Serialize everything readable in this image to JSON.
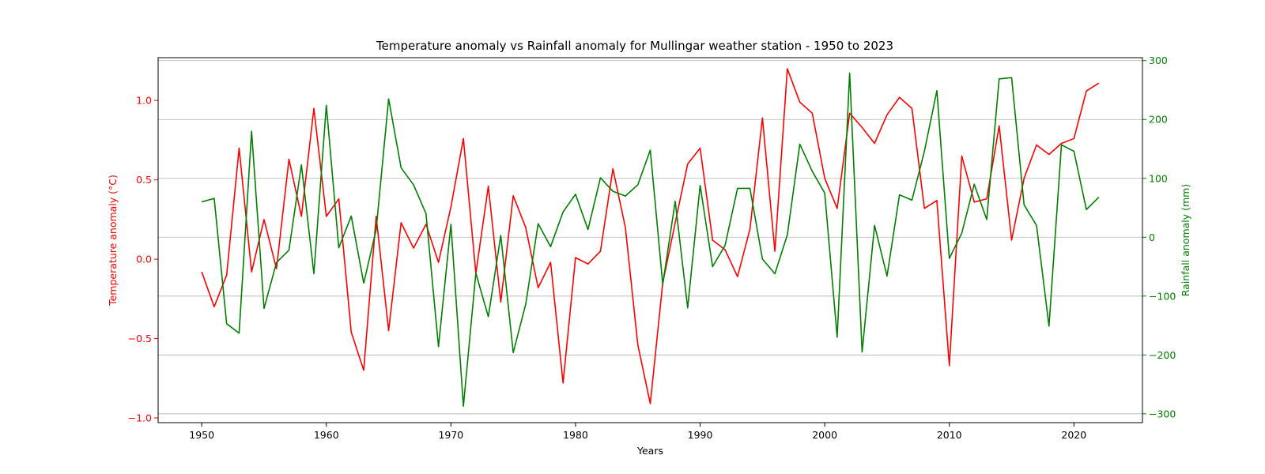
{
  "chart_data": {
    "type": "line",
    "title": "Temperature anomaly vs Rainfall anomaly for Mullingar weather station - 1950 to 2023",
    "xlabel": "Years",
    "xlim": [
      1946.5,
      2025.5
    ],
    "xticks": [
      1950,
      1960,
      1970,
      1980,
      1990,
      2000,
      2010,
      2020
    ],
    "x": [
      1950,
      1951,
      1952,
      1953,
      1954,
      1955,
      1956,
      1957,
      1958,
      1959,
      1960,
      1961,
      1962,
      1963,
      1964,
      1965,
      1966,
      1967,
      1968,
      1969,
      1970,
      1971,
      1972,
      1973,
      1974,
      1975,
      1976,
      1977,
      1978,
      1979,
      1980,
      1981,
      1982,
      1983,
      1984,
      1985,
      1986,
      1987,
      1988,
      1989,
      1990,
      1991,
      1992,
      1993,
      1994,
      1995,
      1996,
      1997,
      1998,
      1999,
      2000,
      2001,
      2002,
      2003,
      2004,
      2005,
      2006,
      2007,
      2008,
      2009,
      2010,
      2011,
      2012,
      2013,
      2014,
      2015,
      2016,
      2017,
      2018,
      2019,
      2020,
      2021,
      2022
    ],
    "left_axis": {
      "label": "Temperature anomaly (°C)",
      "color": "#ff0000",
      "ylim": [
        -1.03,
        1.27
      ],
      "ticks": [
        -1.0,
        -0.5,
        0.0,
        0.5,
        1.0
      ],
      "tick_labels": [
        "−1.0",
        "−0.5",
        "0.0",
        "0.5",
        "1.0"
      ]
    },
    "right_axis": {
      "label": "Rainfall anomaly (mm)",
      "color": "#008000",
      "ylim": [
        -315,
        305
      ],
      "ticks": [
        -300,
        -200,
        -100,
        0,
        100,
        200,
        300
      ],
      "tick_labels": [
        "−300",
        "−200",
        "−100",
        "0",
        "100",
        "200",
        "300"
      ]
    },
    "grid": "horizontal lines at right-axis ticks",
    "series": [
      {
        "axis": "left",
        "color": "#ff0000",
        "values": [
          -0.08,
          -0.3,
          -0.1,
          0.7,
          -0.08,
          0.25,
          -0.06,
          0.63,
          0.27,
          0.95,
          0.27,
          0.38,
          -0.46,
          -0.7,
          0.27,
          -0.45,
          0.23,
          0.07,
          0.22,
          -0.02,
          0.33,
          0.76,
          -0.09,
          0.46,
          -0.27,
          0.4,
          0.2,
          -0.18,
          -0.02,
          -0.78,
          0.01,
          -0.03,
          0.05,
          0.57,
          0.2,
          -0.54,
          -0.91,
          -0.15,
          0.23,
          0.6,
          0.7,
          0.12,
          0.06,
          -0.11,
          0.19,
          0.89,
          0.05,
          1.2,
          0.99,
          0.92,
          0.51,
          0.32,
          0.92,
          0.83,
          0.73,
          0.91,
          1.02,
          0.95,
          0.32,
          0.37,
          -0.67,
          0.65,
          0.36,
          0.38,
          0.84,
          0.12,
          0.51,
          0.72,
          0.66,
          0.73,
          0.76,
          1.06,
          1.11
        ]
      },
      {
        "axis": "right",
        "color": "#008000",
        "values": [
          60,
          66,
          -147,
          -163,
          180,
          -121,
          -43,
          -22,
          123,
          -62,
          224,
          -18,
          36,
          -78,
          13,
          235,
          118,
          89,
          40,
          -186,
          22,
          -287,
          -61,
          -135,
          3,
          -196,
          -114,
          23,
          -16,
          43,
          73,
          13,
          101,
          78,
          70,
          89,
          148,
          -80,
          61,
          -120,
          88,
          -50,
          -14,
          83,
          83,
          -37,
          -62,
          4,
          158,
          112,
          75,
          -170,
          279,
          -195,
          20,
          -66,
          72,
          63,
          146,
          249,
          -36,
          7,
          90,
          30,
          269,
          271,
          55,
          20,
          -151,
          157,
          146,
          47,
          68
        ]
      }
    ]
  }
}
